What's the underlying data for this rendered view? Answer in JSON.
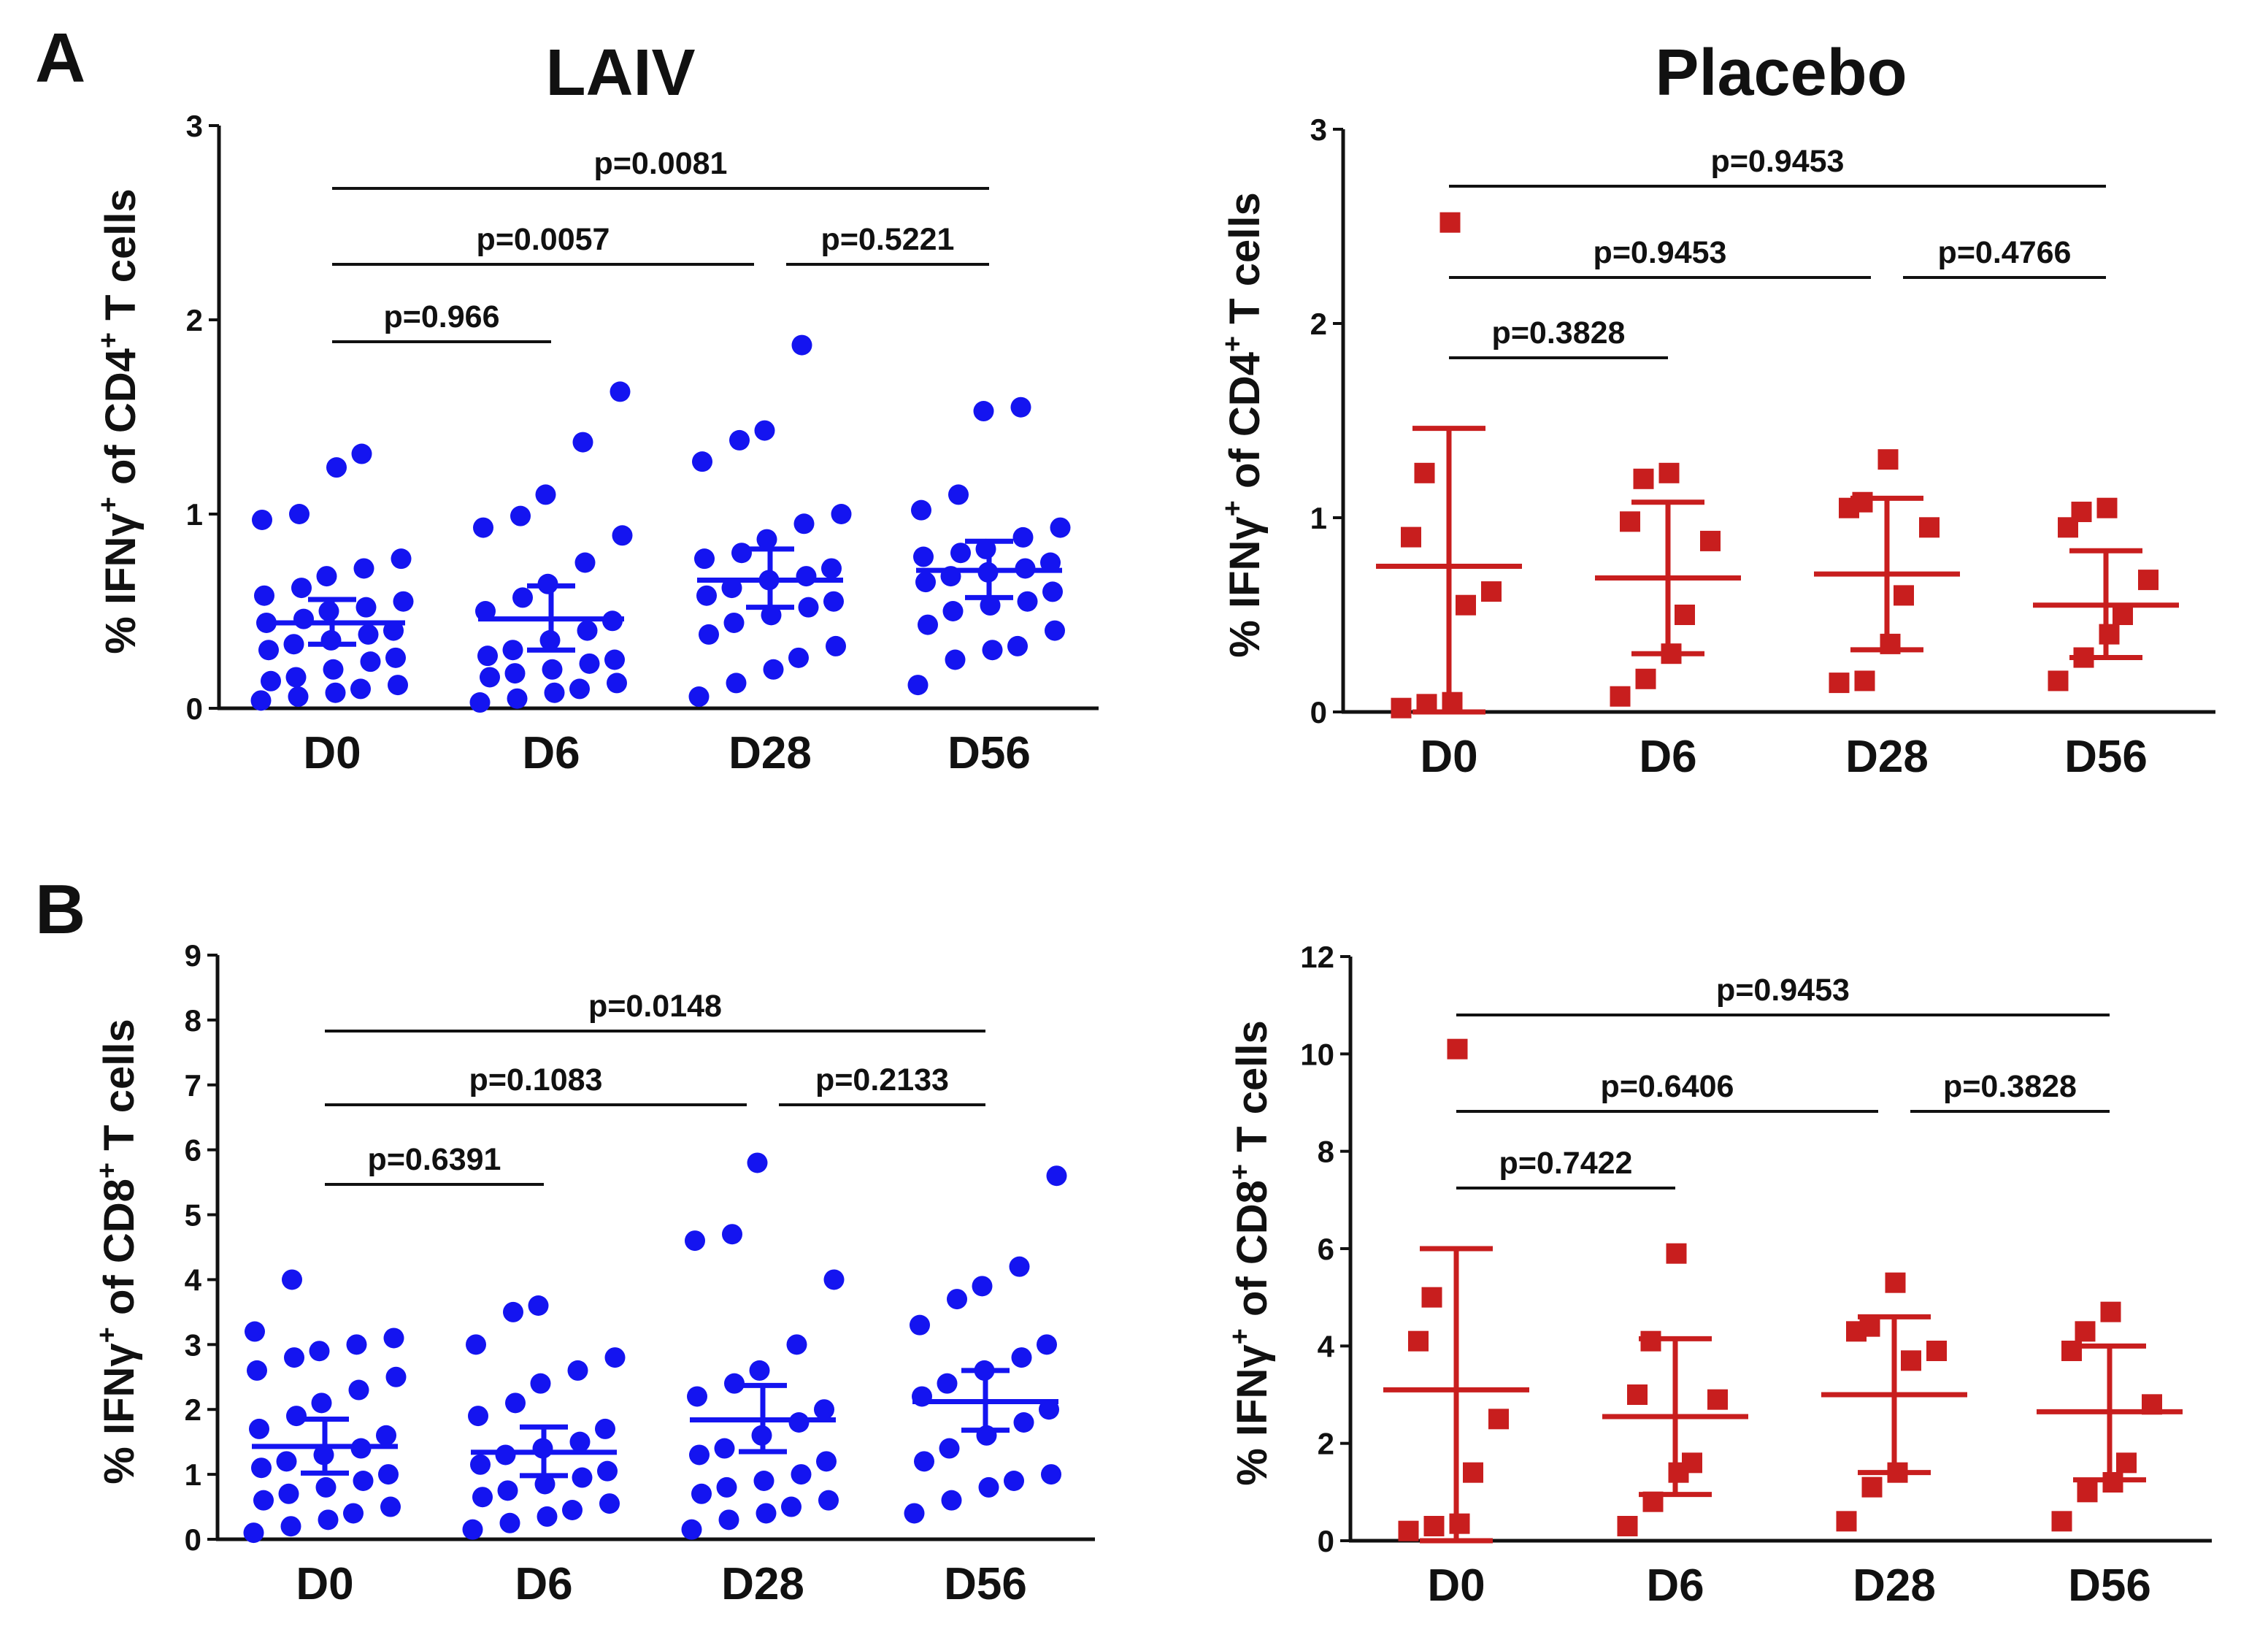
{
  "figure": {
    "panel_labels": [
      "A",
      "B"
    ],
    "column_titles": [
      "LAIV",
      "Placebo"
    ]
  },
  "colors": {
    "laiv": "#1414f0",
    "placebo": "#c81e1e",
    "axis": "#111111"
  },
  "chart_data": [
    {
      "id": "A-LAIV",
      "panel": "A",
      "type": "scatter",
      "title": "LAIV",
      "group": "laiv",
      "marker": "circle",
      "ylabel_main": "% IFNγ",
      "ylabel_sup": "+",
      "ylabel_mid": " of CD4",
      "ylabel_sup2": "+",
      "ylabel_end": " T cells",
      "ylim": [
        0,
        3
      ],
      "yticks": [
        0,
        1,
        2,
        3
      ],
      "categories": [
        "D0",
        "D6",
        "D28",
        "D56"
      ],
      "points": [
        [
          0.04,
          0.06,
          0.08,
          0.1,
          0.12,
          0.14,
          0.16,
          0.2,
          0.24,
          0.26,
          0.3,
          0.33,
          0.35,
          0.38,
          0.4,
          0.44,
          0.46,
          0.5,
          0.52,
          0.55,
          0.58,
          0.62,
          0.68,
          0.72,
          0.77,
          0.97,
          1.0,
          1.24,
          1.31
        ],
        [
          0.03,
          0.05,
          0.08,
          0.1,
          0.13,
          0.16,
          0.18,
          0.2,
          0.23,
          0.25,
          0.27,
          0.3,
          0.35,
          0.4,
          0.45,
          0.5,
          0.57,
          0.64,
          0.75,
          0.89,
          0.93,
          0.99,
          1.1,
          1.37,
          1.63
        ],
        [
          0.06,
          0.13,
          0.2,
          0.26,
          0.32,
          0.38,
          0.44,
          0.48,
          0.52,
          0.55,
          0.58,
          0.62,
          0.66,
          0.68,
          0.72,
          0.77,
          0.8,
          0.87,
          0.95,
          1.0,
          1.27,
          1.38,
          1.43,
          1.87
        ],
        [
          0.12,
          0.25,
          0.3,
          0.32,
          0.4,
          0.43,
          0.5,
          0.53,
          0.55,
          0.6,
          0.65,
          0.68,
          0.7,
          0.72,
          0.75,
          0.78,
          0.8,
          0.82,
          0.88,
          0.93,
          1.02,
          1.1,
          1.53,
          1.55
        ]
      ],
      "means": [
        0.44,
        0.46,
        0.66,
        0.71
      ],
      "err_low": [
        0.33,
        0.3,
        0.52,
        0.57
      ],
      "err_high": [
        0.56,
        0.63,
        0.82,
        0.86
      ],
      "comparisons": [
        {
          "from": 0,
          "to": 1,
          "label": "p=0.966",
          "level": 0
        },
        {
          "from": 0,
          "to": 2,
          "label": "p=0.0057",
          "level": 1
        },
        {
          "from": 2,
          "to": 3,
          "label": "p=0.5221",
          "level": 1
        },
        {
          "from": 0,
          "to": 3,
          "label": "p=0.0081",
          "level": 2
        }
      ]
    },
    {
      "id": "A-Placebo",
      "panel": "A",
      "type": "scatter",
      "title": "Placebo",
      "group": "placebo",
      "marker": "square",
      "ylabel_main": "% IFNγ",
      "ylabel_sup": "+",
      "ylabel_mid": " of CD4",
      "ylabel_sup2": "+",
      "ylabel_end": " T cells",
      "ylim": [
        0,
        3
      ],
      "yticks": [
        0,
        1,
        2,
        3
      ],
      "categories": [
        "D0",
        "D6",
        "D28",
        "D56"
      ],
      "points": [
        [
          0.02,
          0.04,
          0.05,
          0.55,
          0.62,
          0.9,
          1.23,
          2.52
        ],
        [
          0.08,
          0.17,
          0.3,
          0.5,
          0.88,
          0.98,
          1.2,
          1.23
        ],
        [
          0.15,
          0.16,
          0.35,
          0.6,
          0.95,
          1.05,
          1.08,
          1.3
        ],
        [
          0.16,
          0.28,
          0.4,
          0.5,
          0.68,
          0.95,
          1.03,
          1.05
        ]
      ],
      "means": [
        0.75,
        0.69,
        0.71,
        0.55
      ],
      "err_low": [
        0.0,
        0.3,
        0.32,
        0.28
      ],
      "err_high": [
        1.46,
        1.08,
        1.1,
        0.83
      ],
      "comparisons": [
        {
          "from": 0,
          "to": 1,
          "label": "p=0.3828",
          "level": 0
        },
        {
          "from": 0,
          "to": 2,
          "label": "p=0.9453",
          "level": 1
        },
        {
          "from": 2,
          "to": 3,
          "label": "p=0.4766",
          "level": 1
        },
        {
          "from": 0,
          "to": 3,
          "label": "p=0.9453",
          "level": 2
        }
      ]
    },
    {
      "id": "B-LAIV",
      "panel": "B",
      "type": "scatter",
      "title": "",
      "group": "laiv",
      "marker": "circle",
      "ylabel_main": "% IFNγ",
      "ylabel_sup": "+",
      "ylabel_mid": " of CD8",
      "ylabel_sup2": "+",
      "ylabel_end": " T cells",
      "ylim": [
        0,
        9
      ],
      "yticks": [
        0,
        1,
        2,
        3,
        4,
        5,
        6,
        7,
        8,
        9
      ],
      "categories": [
        "D0",
        "D6",
        "D28",
        "D56"
      ],
      "points": [
        [
          0.1,
          0.2,
          0.3,
          0.4,
          0.5,
          0.6,
          0.7,
          0.8,
          0.9,
          1.0,
          1.1,
          1.2,
          1.3,
          1.4,
          1.6,
          1.7,
          1.9,
          2.1,
          2.3,
          2.5,
          2.6,
          2.8,
          2.9,
          3.0,
          3.1,
          3.2,
          4.0
        ],
        [
          0.15,
          0.25,
          0.35,
          0.45,
          0.55,
          0.65,
          0.75,
          0.85,
          0.95,
          1.05,
          1.15,
          1.3,
          1.4,
          1.5,
          1.7,
          1.9,
          2.1,
          2.4,
          2.6,
          2.8,
          3.0,
          3.5,
          3.6
        ],
        [
          0.15,
          0.3,
          0.4,
          0.5,
          0.6,
          0.7,
          0.8,
          0.9,
          1.0,
          1.2,
          1.3,
          1.4,
          1.6,
          1.8,
          2.0,
          2.2,
          2.4,
          2.6,
          3.0,
          4.0,
          4.6,
          4.7,
          5.8
        ],
        [
          0.4,
          0.6,
          0.8,
          0.9,
          1.0,
          1.2,
          1.4,
          1.6,
          1.8,
          2.0,
          2.2,
          2.4,
          2.6,
          2.8,
          3.0,
          3.3,
          3.7,
          3.9,
          4.2,
          5.6
        ]
      ],
      "means": [
        1.43,
        1.34,
        1.84,
        2.12
      ],
      "err_low": [
        1.02,
        0.98,
        1.35,
        1.68
      ],
      "err_high": [
        1.85,
        1.73,
        2.37,
        2.6
      ],
      "comparisons": [
        {
          "from": 0,
          "to": 1,
          "label": "p=0.6391",
          "level": 0
        },
        {
          "from": 0,
          "to": 2,
          "label": "p=0.1083",
          "level": 1
        },
        {
          "from": 2,
          "to": 3,
          "label": "p=0.2133",
          "level": 1
        },
        {
          "from": 0,
          "to": 3,
          "label": "p=0.0148",
          "level": 2
        }
      ]
    },
    {
      "id": "B-Placebo",
      "panel": "B",
      "type": "scatter",
      "title": "",
      "group": "placebo",
      "marker": "square",
      "ylabel_main": "% IFNγ",
      "ylabel_sup": "+",
      "ylabel_mid": " of CD8",
      "ylabel_sup2": "+",
      "ylabel_end": " T cells",
      "ylim": [
        0,
        12
      ],
      "yticks": [
        0,
        2,
        4,
        6,
        8,
        10,
        12
      ],
      "categories": [
        "D0",
        "D6",
        "D28",
        "D56"
      ],
      "points": [
        [
          0.2,
          0.3,
          0.35,
          1.4,
          2.5,
          4.1,
          5.0,
          10.1
        ],
        [
          0.3,
          0.8,
          1.4,
          1.6,
          2.9,
          3.0,
          4.1,
          5.9
        ],
        [
          0.4,
          1.1,
          1.4,
          3.7,
          3.9,
          4.3,
          4.4,
          5.3
        ],
        [
          0.4,
          1.0,
          1.2,
          1.6,
          2.8,
          3.9,
          4.3,
          4.7
        ]
      ],
      "means": [
        3.1,
        2.55,
        3.0,
        2.65
      ],
      "err_low": [
        0.0,
        0.95,
        1.4,
        1.25
      ],
      "err_high": [
        6.0,
        4.15,
        4.6,
        4.0
      ],
      "comparisons": [
        {
          "from": 0,
          "to": 1,
          "label": "p=0.7422",
          "level": 0
        },
        {
          "from": 0,
          "to": 2,
          "label": "p=0.6406",
          "level": 1
        },
        {
          "from": 2,
          "to": 3,
          "label": "p=0.3828",
          "level": 1
        },
        {
          "from": 0,
          "to": 3,
          "label": "p=0.9453",
          "level": 2
        }
      ]
    }
  ]
}
